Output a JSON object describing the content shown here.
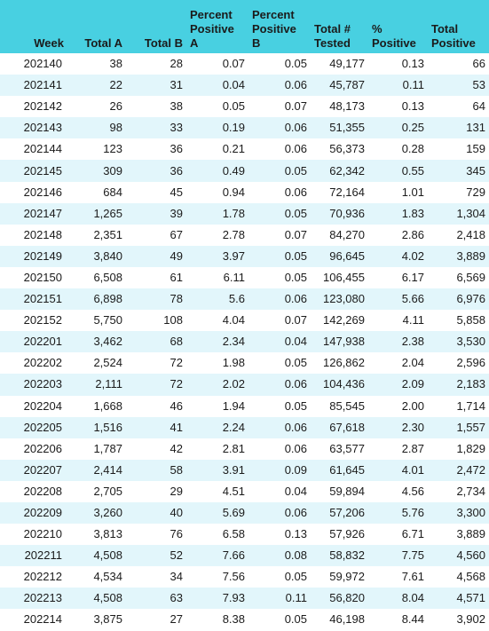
{
  "headers": {
    "week": "Week",
    "total_a": "Total A",
    "total_b": "Total B",
    "pct_pos_a": [
      "Percent",
      "Positive",
      "A"
    ],
    "pct_pos_b": [
      "Percent",
      "Positive",
      "B"
    ],
    "total_tested": [
      "Total #",
      "Tested"
    ],
    "pct_positive": [
      "%",
      "Positive"
    ],
    "total_positive": [
      "Total",
      "Positive"
    ]
  },
  "rows": [
    [
      "202140",
      "38",
      "28",
      "0.07",
      "0.05",
      "49,177",
      "0.13",
      "66"
    ],
    [
      "202141",
      "22",
      "31",
      "0.04",
      "0.06",
      "45,787",
      "0.11",
      "53"
    ],
    [
      "202142",
      "26",
      "38",
      "0.05",
      "0.07",
      "48,173",
      "0.13",
      "64"
    ],
    [
      "202143",
      "98",
      "33",
      "0.19",
      "0.06",
      "51,355",
      "0.25",
      "131"
    ],
    [
      "202144",
      "123",
      "36",
      "0.21",
      "0.06",
      "56,373",
      "0.28",
      "159"
    ],
    [
      "202145",
      "309",
      "36",
      "0.49",
      "0.05",
      "62,342",
      "0.55",
      "345"
    ],
    [
      "202146",
      "684",
      "45",
      "0.94",
      "0.06",
      "72,164",
      "1.01",
      "729"
    ],
    [
      "202147",
      "1,265",
      "39",
      "1.78",
      "0.05",
      "70,936",
      "1.83",
      "1,304"
    ],
    [
      "202148",
      "2,351",
      "67",
      "2.78",
      "0.07",
      "84,270",
      "2.86",
      "2,418"
    ],
    [
      "202149",
      "3,840",
      "49",
      "3.97",
      "0.05",
      "96,645",
      "4.02",
      "3,889"
    ],
    [
      "202150",
      "6,508",
      "61",
      "6.11",
      "0.05",
      "106,455",
      "6.17",
      "6,569"
    ],
    [
      "202151",
      "6,898",
      "78",
      "5.6",
      "0.06",
      "123,080",
      "5.66",
      "6,976"
    ],
    [
      "202152",
      "5,750",
      "108",
      "4.04",
      "0.07",
      "142,269",
      "4.11",
      "5,858"
    ],
    [
      "202201",
      "3,462",
      "68",
      "2.34",
      "0.04",
      "147,938",
      "2.38",
      "3,530"
    ],
    [
      "202202",
      "2,524",
      "72",
      "1.98",
      "0.05",
      "126,862",
      "2.04",
      "2,596"
    ],
    [
      "202203",
      "2,111",
      "72",
      "2.02",
      "0.06",
      "104,436",
      "2.09",
      "2,183"
    ],
    [
      "202204",
      "1,668",
      "46",
      "1.94",
      "0.05",
      "85,545",
      "2.00",
      "1,714"
    ],
    [
      "202205",
      "1,516",
      "41",
      "2.24",
      "0.06",
      "67,618",
      "2.30",
      "1,557"
    ],
    [
      "202206",
      "1,787",
      "42",
      "2.81",
      "0.06",
      "63,577",
      "2.87",
      "1,829"
    ],
    [
      "202207",
      "2,414",
      "58",
      "3.91",
      "0.09",
      "61,645",
      "4.01",
      "2,472"
    ],
    [
      "202208",
      "2,705",
      "29",
      "4.51",
      "0.04",
      "59,894",
      "4.56",
      "2,734"
    ],
    [
      "202209",
      "3,260",
      "40",
      "5.69",
      "0.06",
      "57,206",
      "5.76",
      "3,300"
    ],
    [
      "202210",
      "3,813",
      "76",
      "6.58",
      "0.13",
      "57,926",
      "6.71",
      "3,889"
    ],
    [
      "202211",
      "4,508",
      "52",
      "7.66",
      "0.08",
      "58,832",
      "7.75",
      "4,560"
    ],
    [
      "202212",
      "4,534",
      "34",
      "7.56",
      "0.05",
      "59,972",
      "7.61",
      "4,568"
    ],
    [
      "202213",
      "4,508",
      "63",
      "7.93",
      "0.11",
      "56,820",
      "8.04",
      "4,571"
    ],
    [
      "202214",
      "3,875",
      "27",
      "8.38",
      "0.05",
      "46,198",
      "8.44",
      "3,902"
    ]
  ]
}
